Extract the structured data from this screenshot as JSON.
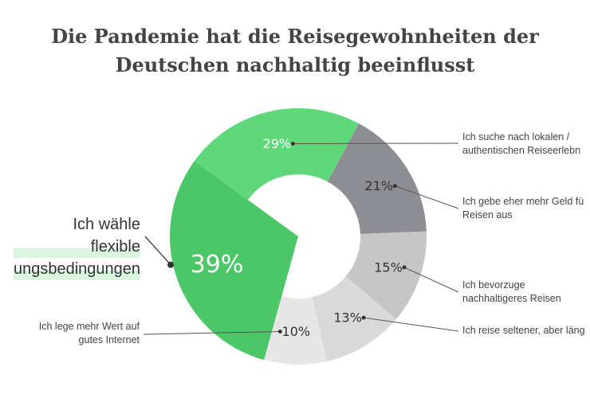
{
  "title_lines": [
    "Die Pandemie hat die Reisegewohnheiten der",
    "Deutschen nachhaltig beeinflusst"
  ],
  "chart_data": {
    "type": "pie",
    "donut": true,
    "title": "Die Pandemie hat die Reisegewohnheiten der Deutschen nachhaltig beeinflusst",
    "slices": [
      {
        "label": "Ich suche nach lokalen / authentischen Reiseerlebn",
        "value": 29,
        "value_label": "29%",
        "color": "#5fd87a"
      },
      {
        "label": "Ich gebe eher mehr Geld fü Reisen aus",
        "value": 21,
        "value_label": "21%",
        "color": "#8d8d94"
      },
      {
        "label": "Ich bevorzuge nachhaltigeres Reisen",
        "value": 15,
        "value_label": "15%",
        "color": "#c6c6c6"
      },
      {
        "label": "Ich reise seltener, aber läng",
        "value": 13,
        "value_label": "13%",
        "color": "#d9d9d9"
      },
      {
        "label": "Ich lege mehr Wert auf gutes Internet",
        "value": 10,
        "value_label": "10%",
        "color": "#e6e6e6"
      },
      {
        "label": "Ich wähle flexible ungsbedingungen",
        "value": 39,
        "value_label": "39%",
        "color": "#4cc767"
      }
    ]
  },
  "labels": {
    "local": [
      "Ich suche nach lokalen /",
      "authentischen Reiseerlebn"
    ],
    "money": [
      "Ich gebe eher mehr Geld fü",
      "Reisen aus"
    ],
    "sustainable": [
      "Ich bevorzuge",
      "nachhaltigeres Reisen"
    ],
    "seldom": [
      "Ich reise seltener, aber läng"
    ],
    "internet": [
      "Ich lege mehr Wert auf",
      "gutes Internet"
    ],
    "flexible": [
      "Ich wähle flexible",
      "ungsbedingungen"
    ]
  }
}
